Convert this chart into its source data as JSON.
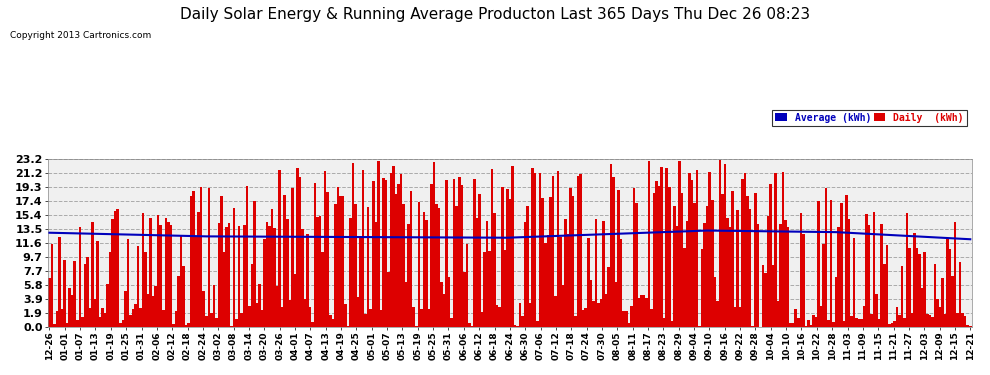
{
  "title": "Daily Solar Energy & Running Average Producton Last 365 Days Thu Dec 26 08:23",
  "copyright": "Copyright 2013 Cartronics.com",
  "legend_labels": [
    "Average (kWh)",
    "Daily  (kWh)"
  ],
  "legend_colors": [
    "#0000bb",
    "#dd0000"
  ],
  "yticks": [
    0.0,
    1.9,
    3.9,
    5.8,
    7.7,
    9.7,
    11.6,
    13.5,
    15.4,
    17.4,
    19.3,
    21.2,
    23.2
  ],
  "ymax": 23.2,
  "ymin": 0.0,
  "bar_color": "#dd0000",
  "avg_color": "#0000bb",
  "bg_color": "#ffffff",
  "plot_bg_color": "#f0f0f0",
  "grid_color": "#aaaaaa",
  "title_fontsize": 11,
  "n_bars": 365,
  "xtick_labels": [
    "12-26",
    "01-01",
    "01-07",
    "01-13",
    "01-19",
    "01-25",
    "01-31",
    "02-06",
    "02-12",
    "02-18",
    "02-24",
    "03-02",
    "03-08",
    "03-14",
    "03-20",
    "03-26",
    "04-01",
    "04-07",
    "04-13",
    "04-19",
    "04-25",
    "05-01",
    "05-07",
    "05-13",
    "05-19",
    "05-25",
    "05-31",
    "06-06",
    "06-12",
    "06-18",
    "06-24",
    "06-30",
    "07-06",
    "07-12",
    "07-18",
    "07-24",
    "07-30",
    "08-05",
    "08-11",
    "08-17",
    "08-23",
    "08-29",
    "09-04",
    "09-10",
    "09-16",
    "09-22",
    "09-28",
    "10-04",
    "10-10",
    "10-16",
    "10-22",
    "10-28",
    "11-03",
    "11-09",
    "11-15",
    "11-21",
    "11-27",
    "12-03",
    "12-09",
    "12-15",
    "12-21"
  ]
}
